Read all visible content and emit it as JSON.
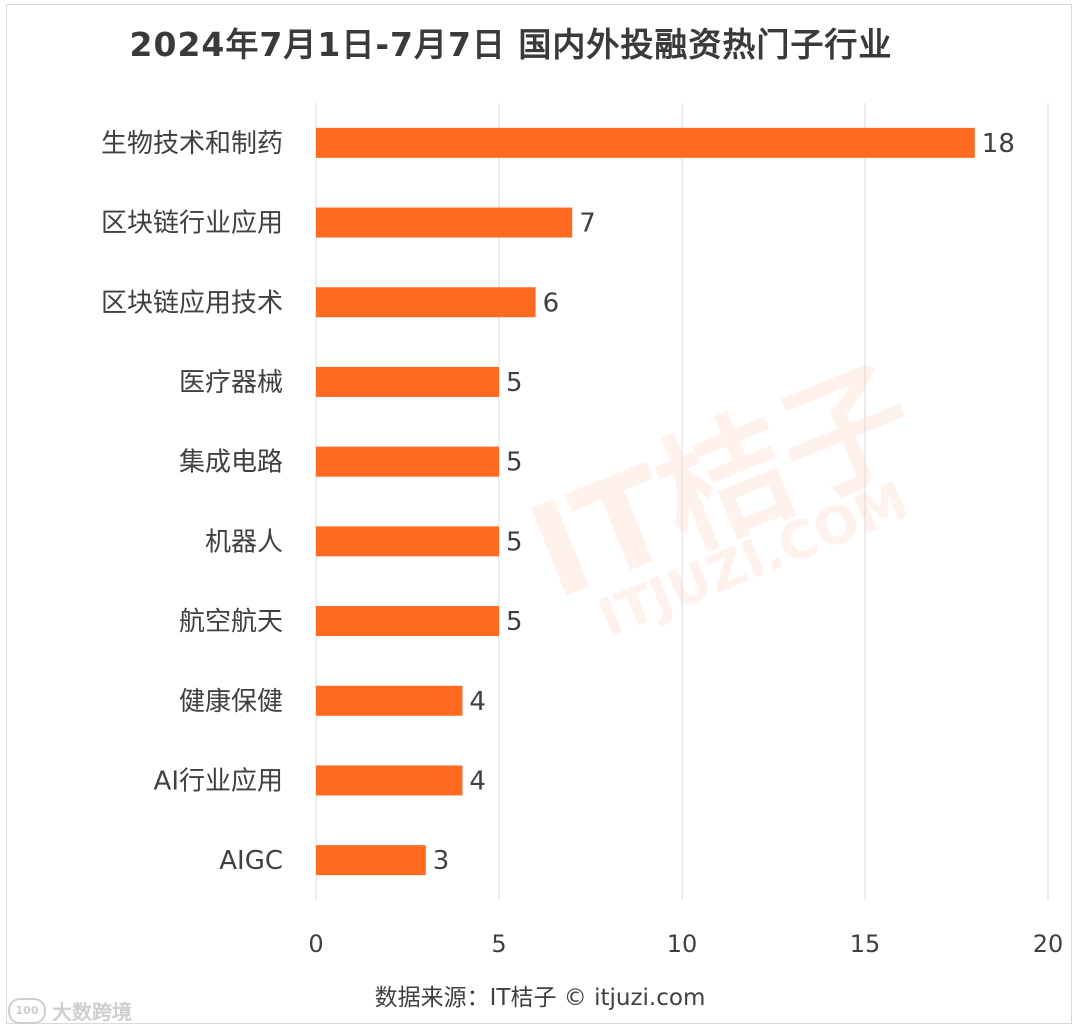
{
  "chart_data": {
    "type": "bar",
    "orientation": "horizontal",
    "title": "2024年7月1日-7月7日 国内外投融资热门子行业",
    "categories": [
      "生物技术和制药",
      "区块链行业应用",
      "区块链应用技术",
      "医疗器械",
      "集成电路",
      "机器人",
      "航空航天",
      "健康保健",
      "AI行业应用",
      "AIGC"
    ],
    "values": [
      18,
      7,
      6,
      5,
      5,
      5,
      5,
      4,
      4,
      3
    ],
    "xlim": [
      0,
      20
    ],
    "xticks": [
      0,
      5,
      10,
      15,
      20
    ],
    "xlabel": "",
    "ylabel": "",
    "grid": true,
    "bar_color": "#ff6a21"
  },
  "source_note": "数据来源：IT桔子 © itjuzi.com",
  "watermark": {
    "main": "IT桔子",
    "sub": "ITJUZI.COM"
  },
  "corner_logo": {
    "text": "大数跨境"
  }
}
